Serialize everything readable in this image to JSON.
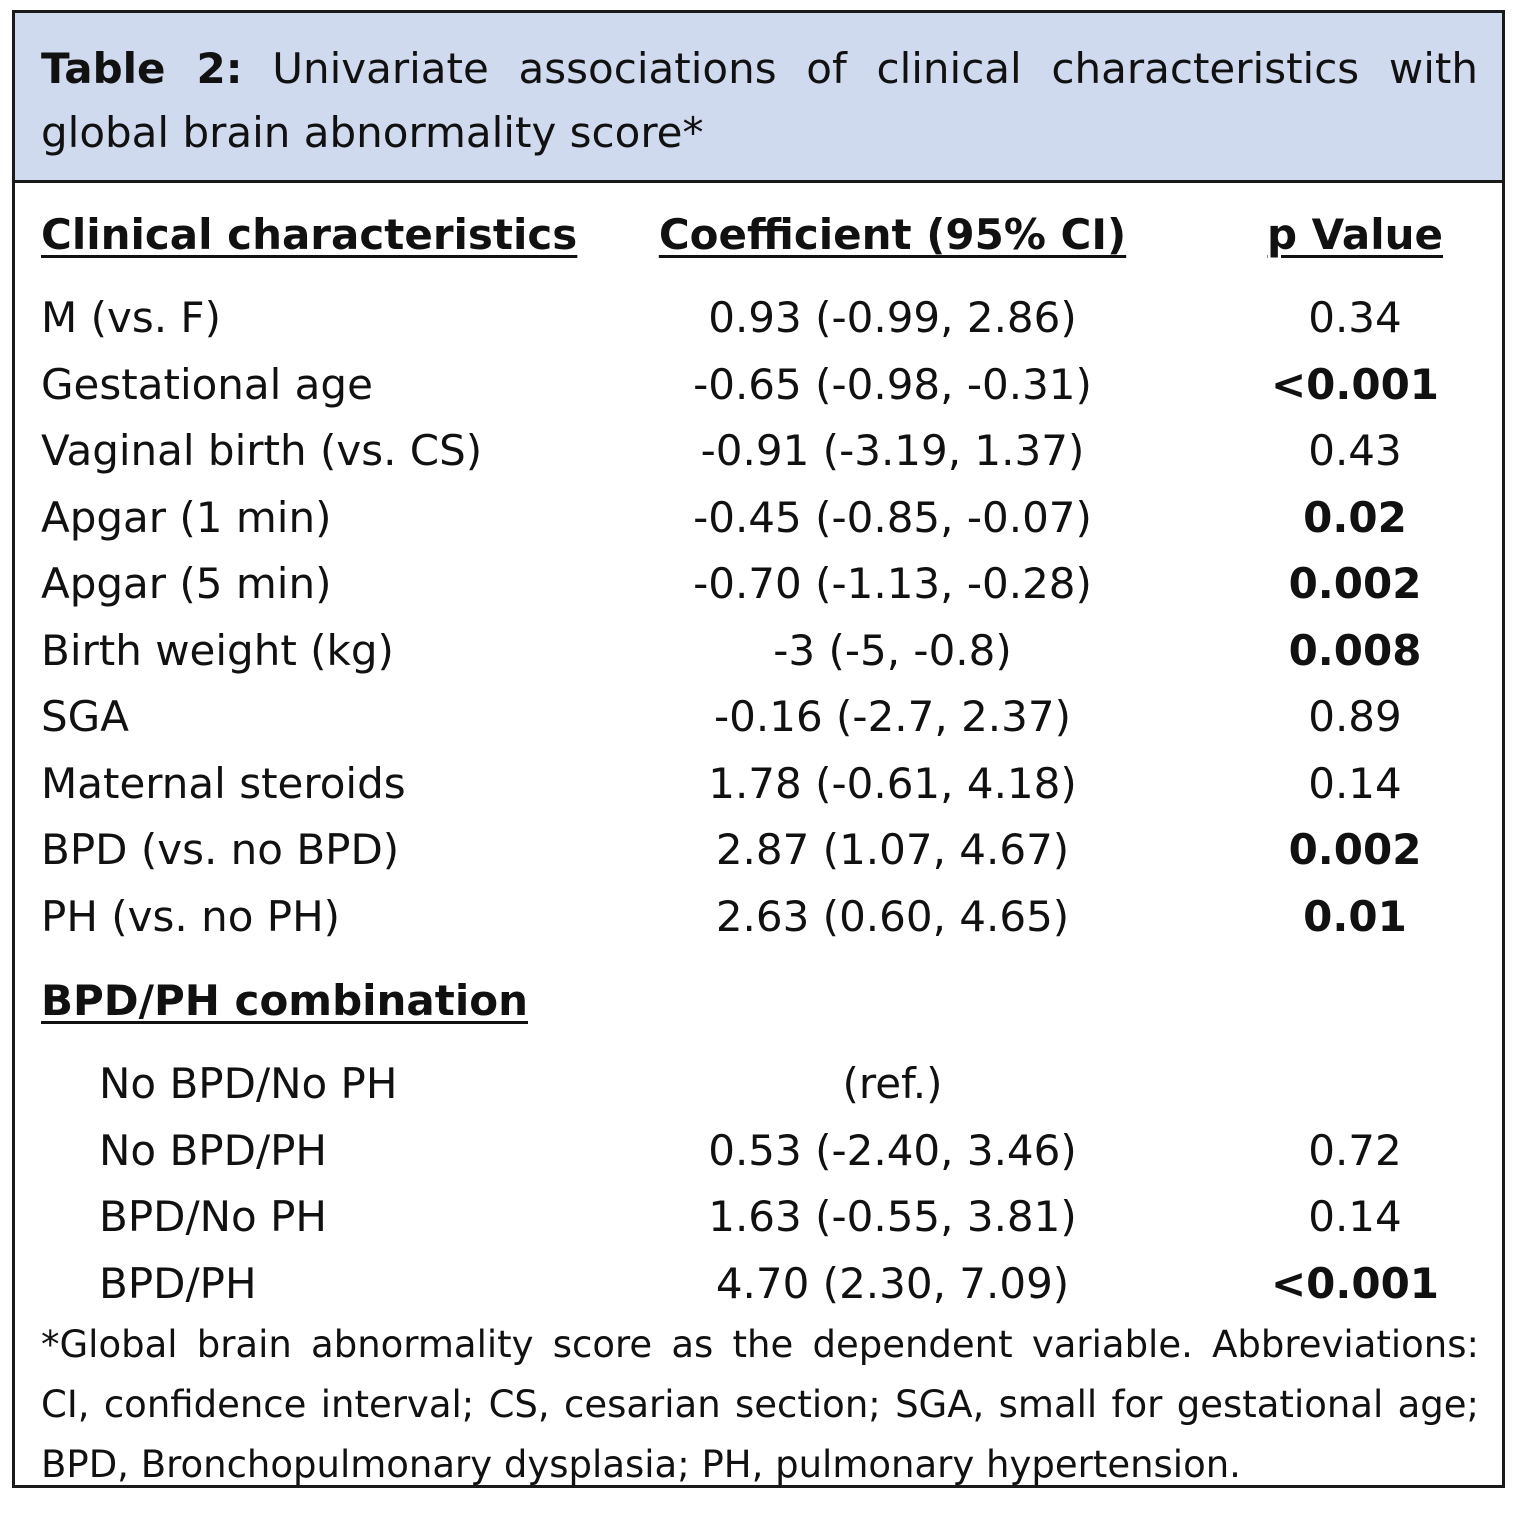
{
  "caption": {
    "label": "Table 2:",
    "text": " Univariate associations of clinical characteristics with global brain abnormality score*"
  },
  "headers": {
    "col1": "Clinical characteristics",
    "col2": "Coefficient (95% CI)",
    "col3": "p Value"
  },
  "rows": [
    {
      "label": "M (vs. F)",
      "coef": "0.93 (-0.99, 2.86)",
      "p": "0.34",
      "bold": false
    },
    {
      "label": "Gestational age",
      "coef": "-0.65 (-0.98, -0.31)",
      "p": "<0.001",
      "bold": true
    },
    {
      "label": "Vaginal birth (vs. CS)",
      "coef": "-0.91 (-3.19, 1.37)",
      "p": "0.43",
      "bold": false
    },
    {
      "label": "Apgar (1 min)",
      "coef": "-0.45 (-0.85, -0.07)",
      "p": "0.02",
      "bold": true
    },
    {
      "label": "Apgar (5 min)",
      "coef": "-0.70 (-1.13, -0.28)",
      "p": "0.002",
      "bold": true
    },
    {
      "label": "Birth weight (kg)",
      "coef": "-3 (-5, -0.8)",
      "p": "0.008",
      "bold": true
    },
    {
      "label": "SGA",
      "coef": "-0.16 (-2.7, 2.37)",
      "p": "0.89",
      "bold": false
    },
    {
      "label": "Maternal steroids",
      "coef": "1.78 (-0.61, 4.18)",
      "p": "0.14",
      "bold": false
    },
    {
      "label": "BPD (vs. no BPD)",
      "coef": "2.87 (1.07, 4.67)",
      "p": "0.002",
      "bold": true
    },
    {
      "label": "PH (vs. no PH)",
      "coef": "2.63 (0.60, 4.65)",
      "p": "0.01",
      "bold": true
    }
  ],
  "combination": {
    "heading": "BPD/PH combination",
    "rows": [
      {
        "label": "No BPD/No PH",
        "coef": "(ref.)",
        "p": "",
        "bold": false
      },
      {
        "label": "No BPD/PH",
        "coef": "0.53 (-2.40, 3.46)",
        "p": "0.72",
        "bold": false
      },
      {
        "label": "BPD/No PH",
        "coef": "1.63 (-0.55, 3.81)",
        "p": "0.14",
        "bold": false
      },
      {
        "label": "BPD/PH",
        "coef": "4.70 (2.30, 7.09)",
        "p": "<0.001",
        "bold": true
      }
    ]
  },
  "footnote": "*Global brain abnormality score as the dependent variable.  Abbreviations: CI, confidence interval; CS, cesarian section; SGA, small for gestational age; BPD, Bronchopulmonary dysplasia; PH, pulmonary hypertension."
}
